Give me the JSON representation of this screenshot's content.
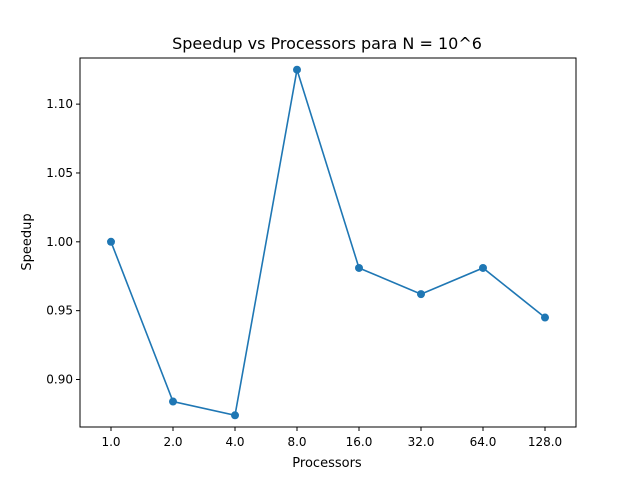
{
  "chart_data": {
    "type": "line",
    "title": "Speedup vs Processors para N = 10^6",
    "xlabel": "Processors",
    "ylabel": "Speedup",
    "categories": [
      "1.0",
      "2.0",
      "4.0",
      "8.0",
      "16.0",
      "32.0",
      "64.0",
      "128.0"
    ],
    "series": [
      {
        "values": [
          1.0,
          0.884,
          0.874,
          1.125,
          0.981,
          0.962,
          0.981,
          0.945
        ],
        "color": "#1f77b4",
        "marker": "circle"
      }
    ],
    "yticks": [
      "0.90",
      "0.95",
      "1.00",
      "1.05",
      "1.10"
    ],
    "ylim": [
      0.8655,
      1.1335
    ],
    "grid": false,
    "legend": "none"
  }
}
